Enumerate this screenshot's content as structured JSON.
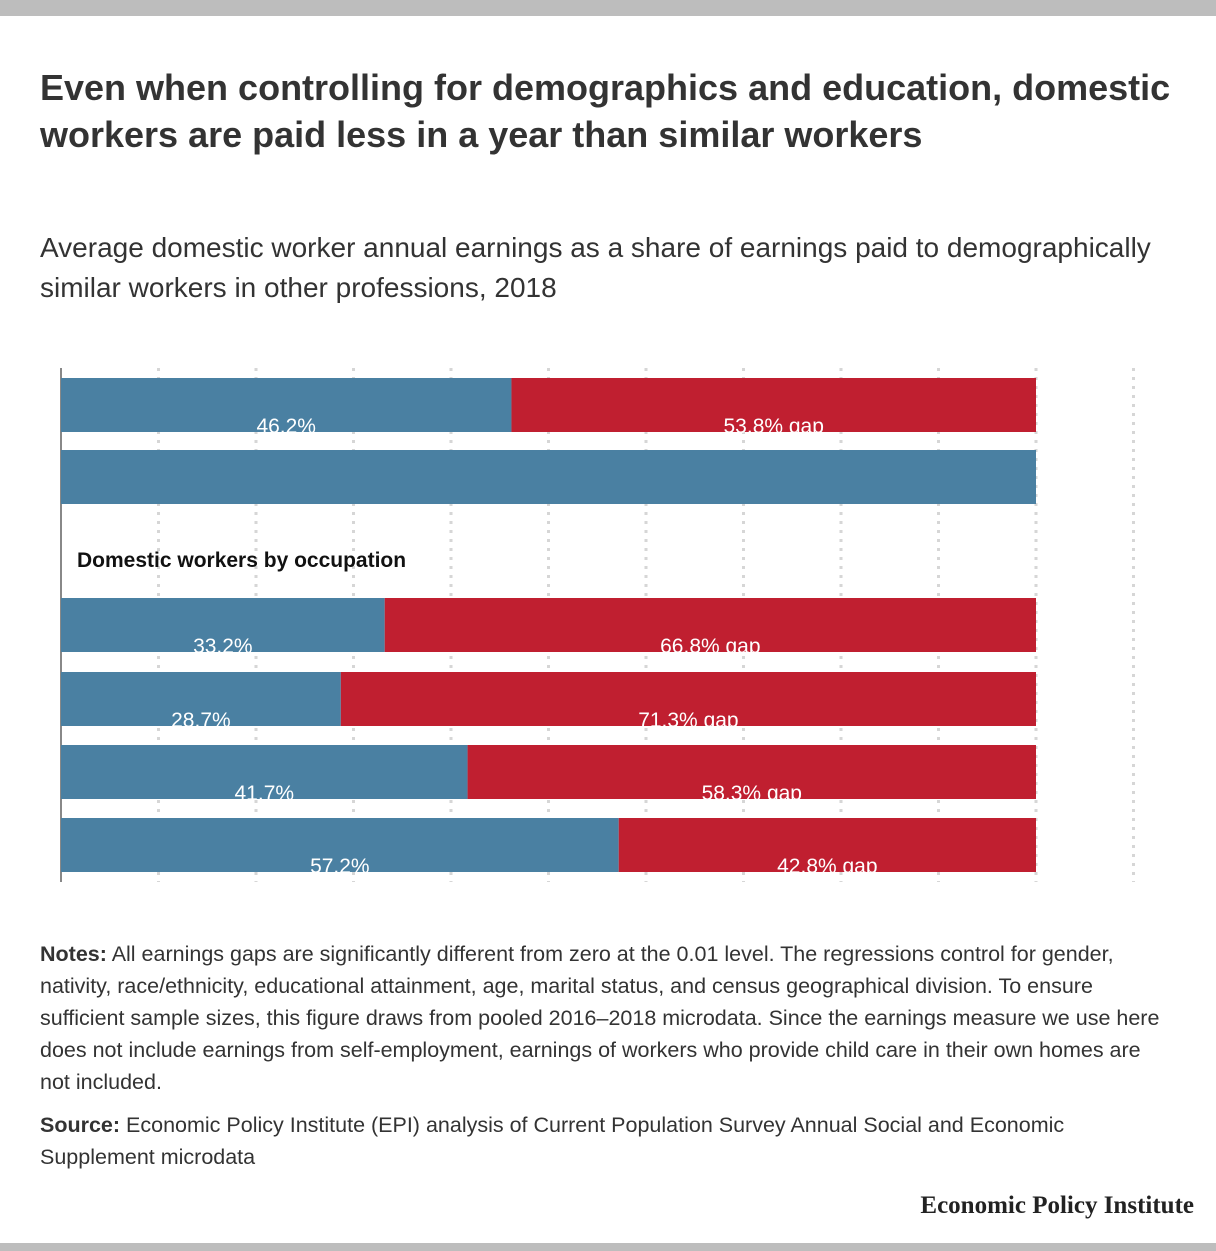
{
  "title": "Even when controlling for demographics and education, domestic workers are paid less in a year than similar workers",
  "subtitle": "Average domestic worker annual earnings as a share of earnings paid to demographically similar workers in other professions, 2018",
  "notes_label": "Notes:",
  "notes_text": " All earnings gaps are significantly different from zero at the 0.01 level. The regressions control for gender, nativity, race/ethnicity, educational attainment, age, marital status, and census geographical division. To ensure sufficient sample sizes, this figure draws from pooled 2016–2018 microdata. Since the earnings measure we use here does not include earnings from self-employment, earnings of workers who provide child care in their own homes are not included.",
  "source_label": "Source:",
  "source_text": " Economic Policy Institute (EPI) analysis of Current Population Survey Annual Social and Economic Supplement microdata",
  "brand": "Economic Policy Institute",
  "chart_data": {
    "type": "bar",
    "orientation": "horizontal",
    "stacked": true,
    "xlim": [
      0,
      110
    ],
    "grid": true,
    "section_label": "Domestic workers by occupation",
    "series": [
      {
        "name": "share",
        "color": "#4a80a2"
      },
      {
        "name": "gap",
        "color": "#c01f30"
      }
    ],
    "rows": [
      {
        "share": 46.2,
        "gap": 53.8,
        "share_label": "46.2%",
        "gap_label": "53.8% gap"
      },
      {
        "share": 100,
        "gap": 0,
        "share_label": "",
        "gap_label": ""
      },
      {
        "share": 33.2,
        "gap": 66.8,
        "share_label": "33.2%",
        "gap_label": "66.8% gap"
      },
      {
        "share": 28.7,
        "gap": 71.3,
        "share_label": "28.7%",
        "gap_label": "71.3% gap"
      },
      {
        "share": 41.7,
        "gap": 58.3,
        "share_label": "41.7%",
        "gap_label": "58.3% gap"
      },
      {
        "share": 57.2,
        "gap": 42.8,
        "share_label": "57.2%",
        "gap_label": "42.8% gap"
      }
    ]
  }
}
